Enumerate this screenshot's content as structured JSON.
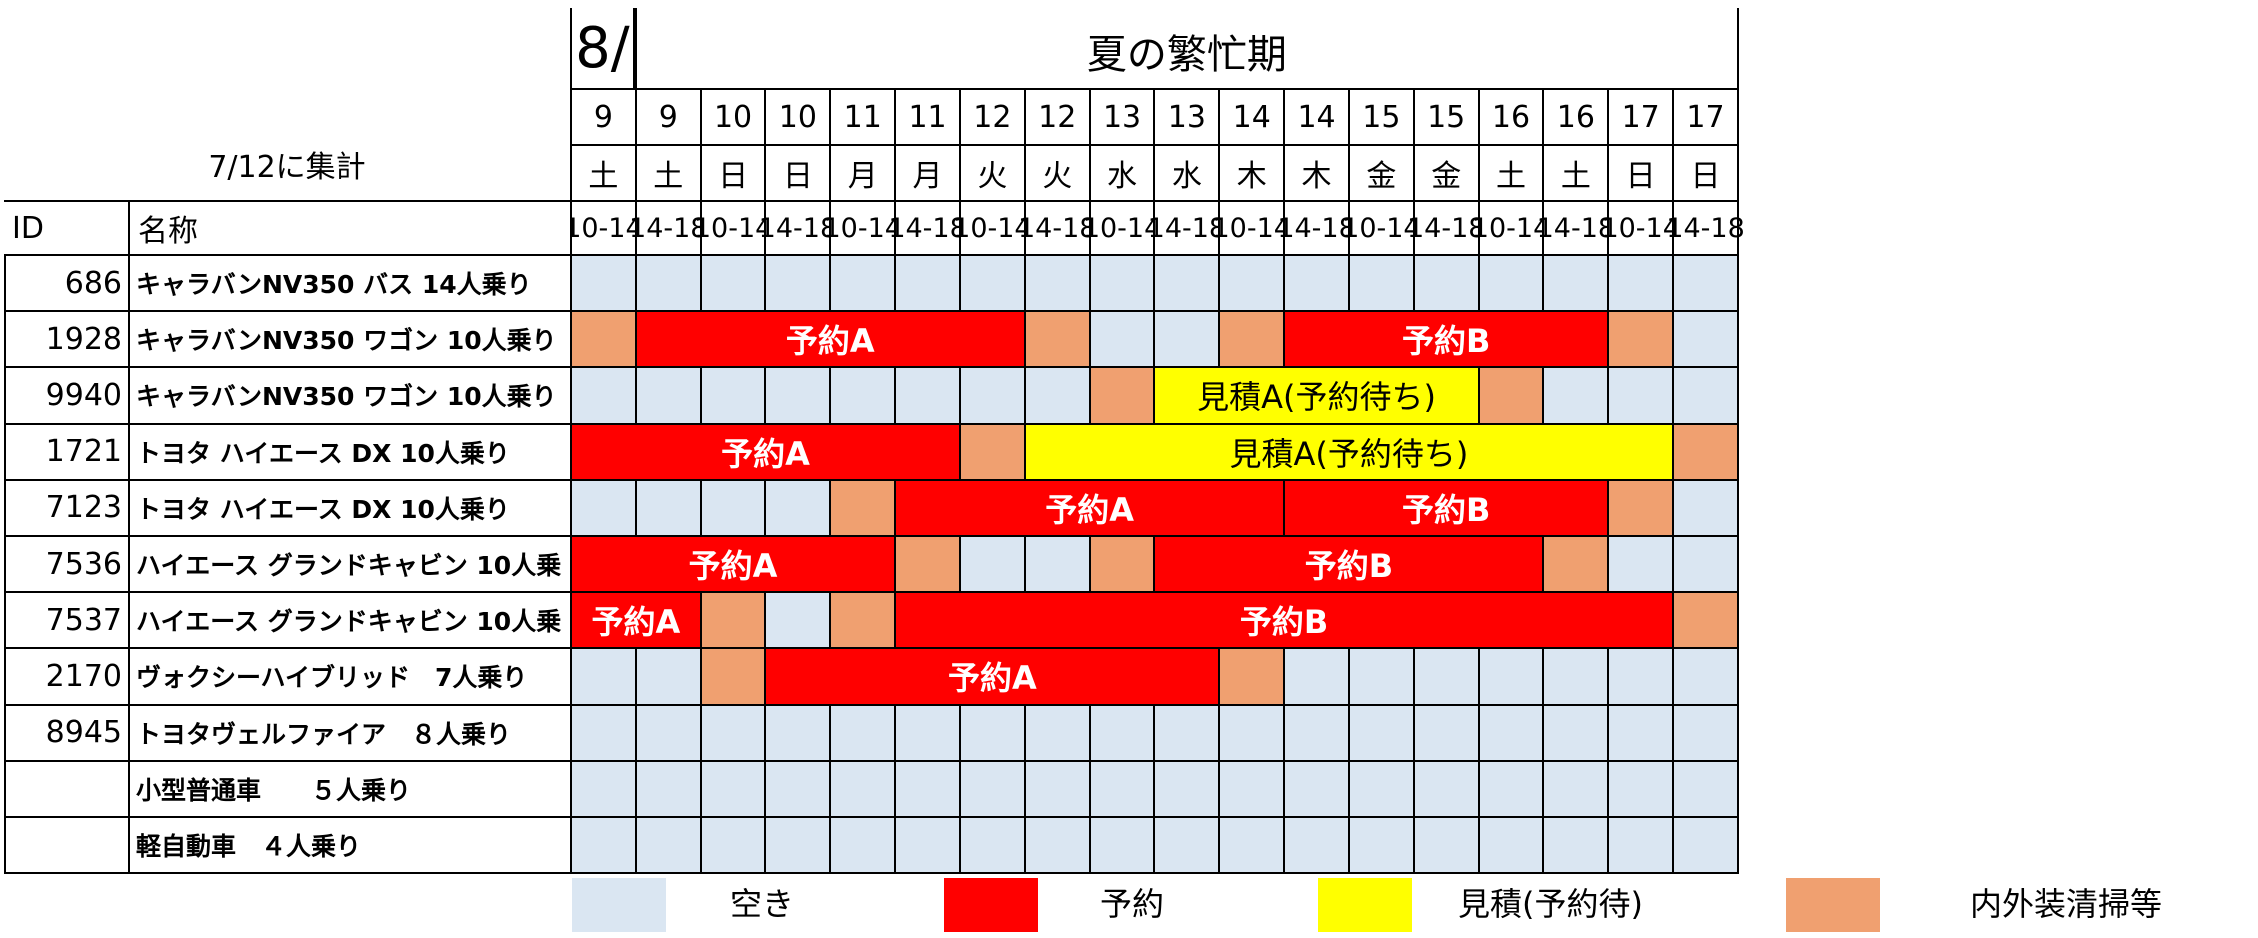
{
  "header": {
    "month": "8/",
    "period_title": "夏の繁忙期",
    "tally_note": "7/12に集計",
    "id_label": "ID",
    "name_label": "名称"
  },
  "slots": [
    {
      "day": "9",
      "weekday": "土",
      "time": "10-14"
    },
    {
      "day": "9",
      "weekday": "土",
      "time": "14-18"
    },
    {
      "day": "10",
      "weekday": "日",
      "time": "10-14"
    },
    {
      "day": "10",
      "weekday": "日",
      "time": "14-18"
    },
    {
      "day": "11",
      "weekday": "月",
      "time": "10-14"
    },
    {
      "day": "11",
      "weekday": "月",
      "time": "14-18"
    },
    {
      "day": "12",
      "weekday": "火",
      "time": "10-14"
    },
    {
      "day": "12",
      "weekday": "火",
      "time": "14-18"
    },
    {
      "day": "13",
      "weekday": "水",
      "time": "10-14"
    },
    {
      "day": "13",
      "weekday": "水",
      "time": "14-18"
    },
    {
      "day": "14",
      "weekday": "木",
      "time": "10-14"
    },
    {
      "day": "14",
      "weekday": "木",
      "time": "14-18"
    },
    {
      "day": "15",
      "weekday": "金",
      "time": "10-14"
    },
    {
      "day": "15",
      "weekday": "金",
      "time": "14-18"
    },
    {
      "day": "16",
      "weekday": "土",
      "time": "10-14"
    },
    {
      "day": "16",
      "weekday": "土",
      "time": "14-18"
    },
    {
      "day": "17",
      "weekday": "日",
      "time": "10-14"
    },
    {
      "day": "17",
      "weekday": "日",
      "time": "14-18"
    }
  ],
  "status_colors": {
    "empty": "#dae6f2",
    "reserve": "#ff0000",
    "estimate": "#ffff00",
    "clean": "#f0a070"
  },
  "vehicles": [
    {
      "id": "686",
      "name": "キャラバンNV350 バス 14人乗り",
      "segments": [
        {
          "status": "empty",
          "span": 18
        }
      ]
    },
    {
      "id": "1928",
      "name": "キャラバンNV350 ワゴン 10人乗り",
      "segments": [
        {
          "status": "clean",
          "span": 1
        },
        {
          "status": "reserve",
          "span": 6,
          "label": "予約A"
        },
        {
          "status": "clean",
          "span": 1
        },
        {
          "status": "empty",
          "span": 1
        },
        {
          "status": "empty",
          "span": 1
        },
        {
          "status": "clean",
          "span": 1
        },
        {
          "status": "reserve",
          "span": 5,
          "label": "予約B"
        },
        {
          "status": "clean",
          "span": 1
        },
        {
          "status": "empty",
          "span": 1
        }
      ]
    },
    {
      "id": "9940",
      "name": "キャラバンNV350 ワゴン 10人乗り",
      "segments": [
        {
          "status": "empty",
          "span": 8
        },
        {
          "status": "clean",
          "span": 1
        },
        {
          "status": "estimate",
          "span": 5,
          "label": "見積A(予約待ち)"
        },
        {
          "status": "clean",
          "span": 1
        },
        {
          "status": "empty",
          "span": 3
        }
      ]
    },
    {
      "id": "1721",
      "name": "トヨタ ハイエース DX 10人乗り",
      "segments": [
        {
          "status": "reserve",
          "span": 6,
          "label": "予約A"
        },
        {
          "status": "clean",
          "span": 1
        },
        {
          "status": "estimate",
          "span": 10,
          "label": "見積A(予約待ち)"
        },
        {
          "status": "clean",
          "span": 1
        }
      ]
    },
    {
      "id": "7123",
      "name": "トヨタ ハイエース DX 10人乗り",
      "segments": [
        {
          "status": "empty",
          "span": 4
        },
        {
          "status": "clean",
          "span": 1
        },
        {
          "status": "reserve",
          "span": 6,
          "label": "予約A"
        },
        {
          "status": "reserve",
          "span": 5,
          "label": "予約B"
        },
        {
          "status": "clean",
          "span": 1
        },
        {
          "status": "empty",
          "span": 1
        }
      ]
    },
    {
      "id": "7536",
      "name": "ハイエース グランドキャビン 10人乗",
      "segments": [
        {
          "status": "reserve",
          "span": 5,
          "label": "予約A"
        },
        {
          "status": "clean",
          "span": 1
        },
        {
          "status": "empty",
          "span": 2
        },
        {
          "status": "clean",
          "span": 1
        },
        {
          "status": "reserve",
          "span": 6,
          "label": "予約B"
        },
        {
          "status": "clean",
          "span": 1
        },
        {
          "status": "empty",
          "span": 2
        }
      ]
    },
    {
      "id": "7537",
      "name": "ハイエース グランドキャビン 10人乗",
      "segments": [
        {
          "status": "reserve",
          "span": 2,
          "label": "予約A"
        },
        {
          "status": "clean",
          "span": 1
        },
        {
          "status": "empty",
          "span": 1
        },
        {
          "status": "clean",
          "span": 1
        },
        {
          "status": "reserve",
          "span": 12,
          "label": "予約B"
        },
        {
          "status": "clean",
          "span": 1
        }
      ]
    },
    {
      "id": "2170",
      "name": "ヴォクシーハイブリッド　7人乗り",
      "segments": [
        {
          "status": "empty",
          "span": 2
        },
        {
          "status": "clean",
          "span": 1
        },
        {
          "status": "reserve",
          "span": 7,
          "label": "予約A"
        },
        {
          "status": "clean",
          "span": 1
        },
        {
          "status": "empty",
          "span": 7
        }
      ]
    },
    {
      "id": "8945",
      "name": "トヨタヴェルファイア　８人乗り",
      "segments": [
        {
          "status": "empty",
          "span": 18
        }
      ]
    },
    {
      "id": "",
      "name": "小型普通車　　５人乗り",
      "segments": [
        {
          "status": "empty",
          "span": 18
        }
      ]
    },
    {
      "id": "",
      "name": "軽自動車　４人乗り",
      "segments": [
        {
          "status": "empty",
          "span": 18
        }
      ]
    }
  ],
  "legend": [
    {
      "status": "empty",
      "label": "空き"
    },
    {
      "status": "reserve",
      "label": "予約"
    },
    {
      "status": "estimate",
      "label": "見積(予約待)"
    },
    {
      "status": "clean",
      "label": "内外装清掃等"
    }
  ]
}
